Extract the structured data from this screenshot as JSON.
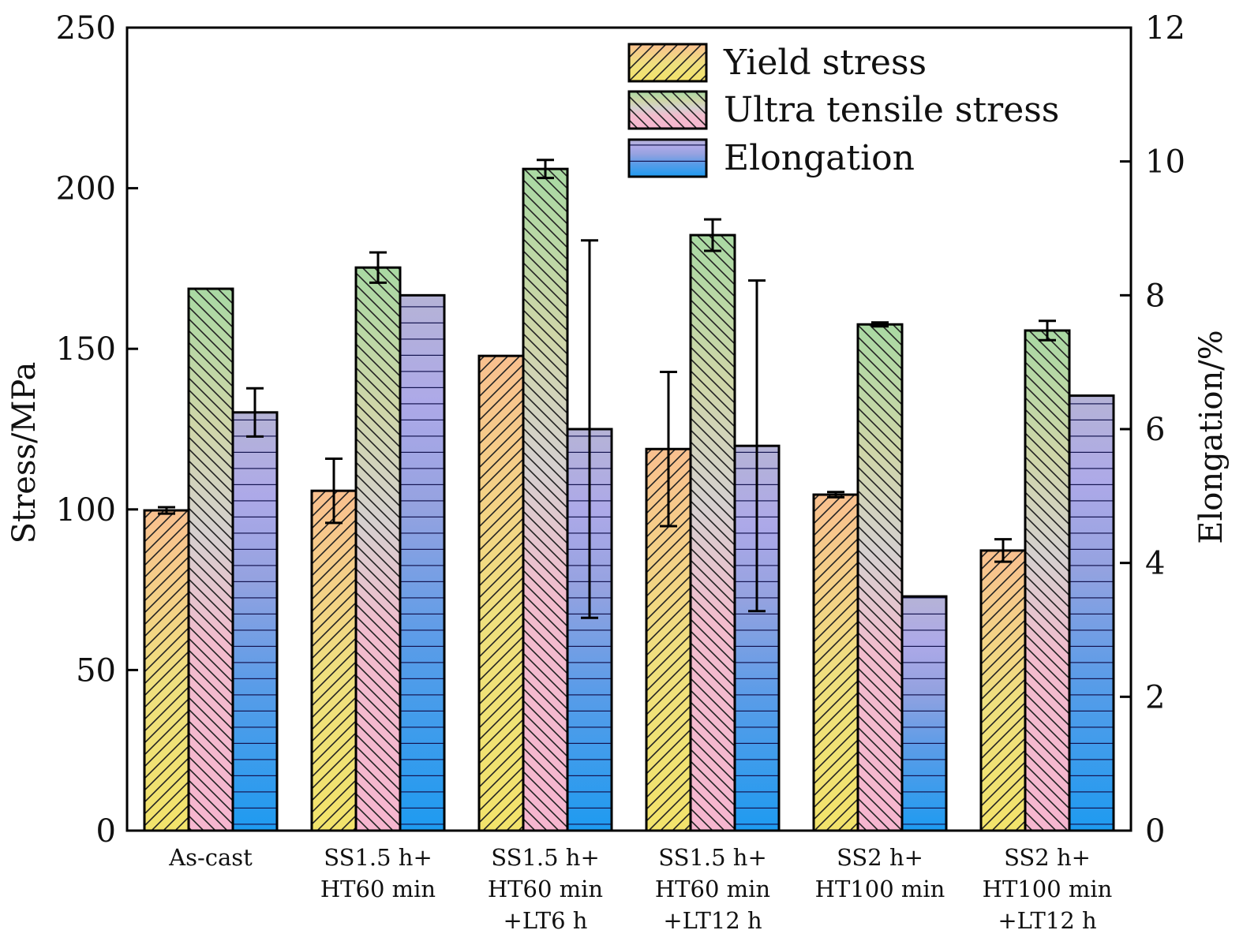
{
  "chart_data": {
    "type": "bar",
    "title": "",
    "categories": [
      [
        "As-cast"
      ],
      [
        "SS1.5 h+",
        "HT60 min"
      ],
      [
        "SS1.5 h+",
        "HT60 min",
        "+LT6 h"
      ],
      [
        "SS1.5 h+",
        "HT60 min",
        "+LT12 h"
      ],
      [
        "SS2 h+",
        "HT100 min"
      ],
      [
        "SS2 h+",
        "HT100 min",
        "+LT12 h"
      ]
    ],
    "series": [
      {
        "name": "Yield stress",
        "axis": "left",
        "values": [
          99.7,
          105.8,
          147.8,
          118.8,
          104.6,
          87.2
        ],
        "errors": [
          1.0,
          10.0,
          null,
          24.0,
          0.8,
          3.5
        ],
        "colors_gradient": [
          "#f2e36b",
          "#f9c08f"
        ],
        "hatch": "forward-diagonal"
      },
      {
        "name": "Ultra tensile stress",
        "axis": "left",
        "values": [
          168.7,
          175.3,
          206.0,
          185.4,
          157.6,
          155.7
        ],
        "errors": [
          null,
          4.7,
          2.8,
          4.9,
          0.6,
          3.0
        ],
        "colors_gradient": [
          "#f6b6cf",
          "#a9d9a3"
        ],
        "hatch": "back-diagonal"
      },
      {
        "name": "Elongation",
        "axis": "right",
        "values": [
          6.25,
          8.0,
          6.0,
          5.75,
          3.5,
          6.5
        ],
        "errors": [
          0.36,
          null,
          2.82,
          2.47,
          null,
          null
        ],
        "colors_gradient": [
          "#1e9bf0",
          "#b5b3d6"
        ],
        "hatch": "horizontal"
      }
    ],
    "ylabel": "Stress/MPa",
    "ylim": [
      0,
      250
    ],
    "yticks": [
      "0",
      "50",
      "100",
      "150",
      "200",
      "250"
    ],
    "y2label": "Elongation/%",
    "y2lim": [
      0,
      12
    ],
    "y2ticks": [
      "0",
      "2",
      "4",
      "6",
      "8",
      "10",
      "12"
    ],
    "grid": false,
    "legend_position": "top-right"
  }
}
